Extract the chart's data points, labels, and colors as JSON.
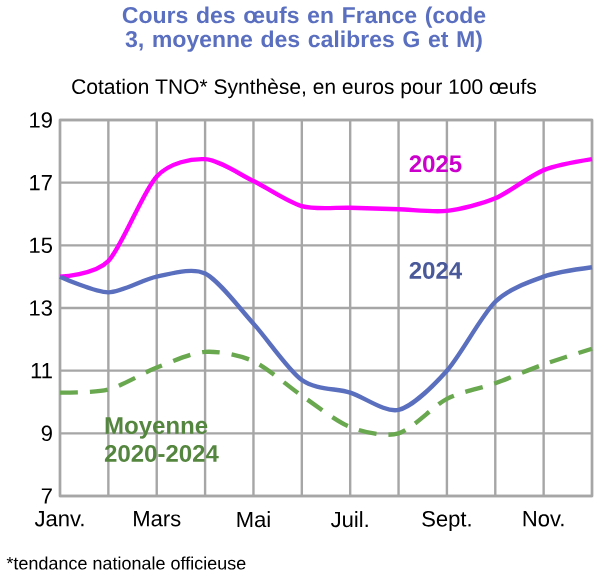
{
  "chart_data": {
    "type": "line",
    "title": "Cours des œufs en France (code 3, moyenne des calibres G et M)",
    "subtitle": "Cotation TNO* Synthèse, en euros pour 100 œufs",
    "categories": [
      "Janv.",
      null,
      "Mars",
      null,
      "Mai",
      null,
      "Juil.",
      null,
      "Sept.",
      null,
      "Nov.",
      null
    ],
    "series": [
      {
        "name": "2025",
        "color": "#ff00ff",
        "values": [
          14.0,
          14.5,
          17.2,
          17.75,
          17.05,
          16.25,
          16.2,
          16.15,
          16.1,
          16.5,
          17.4,
          17.75
        ]
      },
      {
        "name": "2024",
        "color": "#5b6fbf",
        "values": [
          14.0,
          13.5,
          14.0,
          14.1,
          12.5,
          10.7,
          10.3,
          9.75,
          11.0,
          13.2,
          14.0,
          14.3
        ]
      },
      {
        "name": "Moyenne 2020-2024",
        "color": "#6aa84f",
        "line_style": "dashed",
        "values": [
          10.3,
          10.4,
          11.1,
          11.6,
          11.3,
          10.2,
          9.2,
          9.0,
          10.1,
          10.6,
          11.2,
          11.7
        ]
      }
    ],
    "ylim": [
      7,
      19
    ],
    "yticks": [
      7,
      9,
      11,
      13,
      15,
      17,
      19
    ],
    "grid": true,
    "annotations": [
      "*tendance nationale officieuse"
    ]
  }
}
